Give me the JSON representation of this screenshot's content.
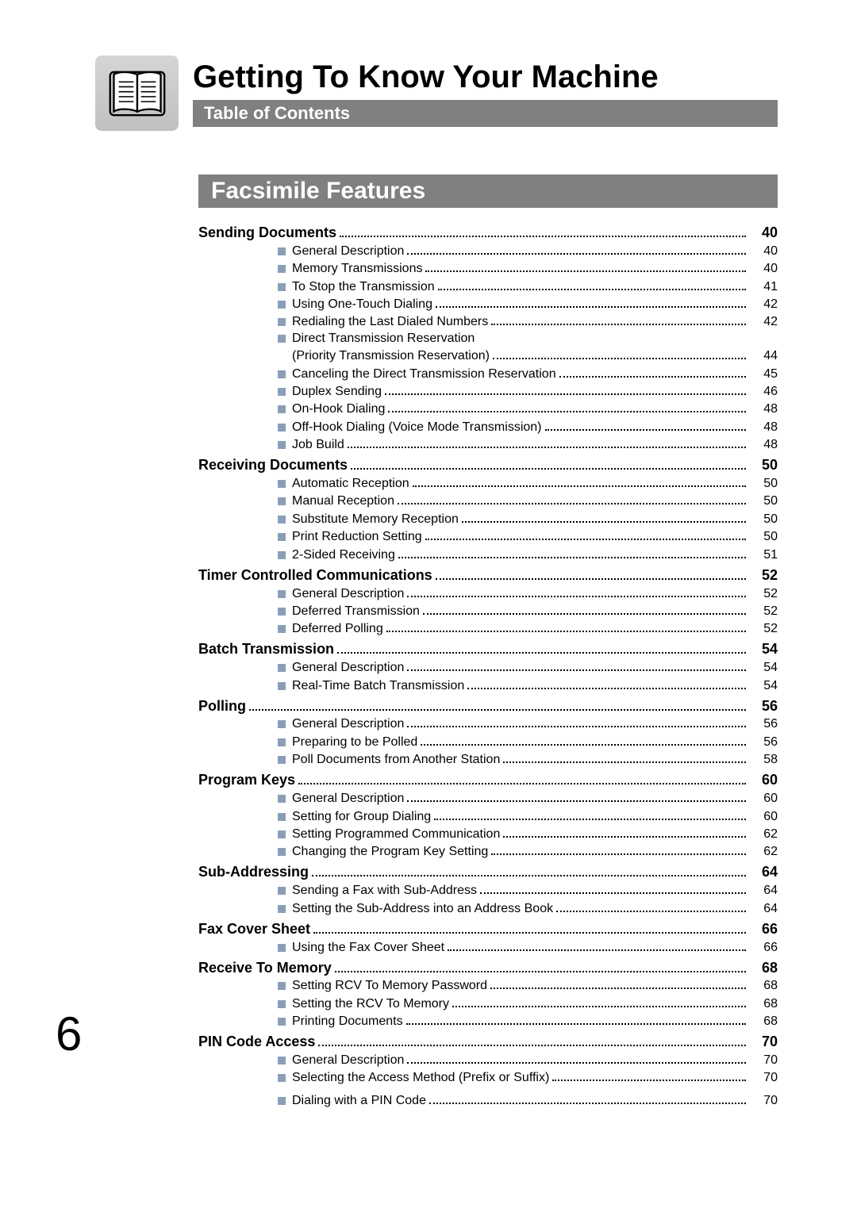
{
  "colors": {
    "barBg": "#808080",
    "barText": "#ffffff",
    "bullet": "#8a9fb7",
    "iconBg": "#cfcfcf",
    "text": "#000000"
  },
  "typography": {
    "titleSize": 40,
    "sectionSize": 30,
    "majorSize": 18,
    "subSize": 16,
    "folioSize": 60,
    "family": "Arial"
  },
  "page": {
    "title": "Getting To Know Your Machine",
    "tocBarLabel": "Table of Contents",
    "sectionBarLabel": "Facsimile Features",
    "folio": "6"
  },
  "toc": [
    {
      "type": "major",
      "label": "Sending Documents",
      "page": "40"
    },
    {
      "type": "sub",
      "label": "General Description",
      "page": "40"
    },
    {
      "type": "sub",
      "label": "Memory Transmissions",
      "page": "40"
    },
    {
      "type": "sub",
      "label": "To Stop the Transmission",
      "page": "41"
    },
    {
      "type": "sub",
      "label": "Using One-Touch Dialing",
      "page": "42"
    },
    {
      "type": "sub",
      "label": "Redialing the Last Dialed Numbers",
      "page": "42"
    },
    {
      "type": "sub-noleader",
      "label": "Direct Transmission Reservation",
      "page": ""
    },
    {
      "type": "sub-cont",
      "label": "(Priority Transmission Reservation)",
      "page": "44"
    },
    {
      "type": "sub",
      "label": "Canceling the Direct Transmission Reservation",
      "page": "45"
    },
    {
      "type": "sub",
      "label": "Duplex Sending",
      "page": "46"
    },
    {
      "type": "sub",
      "label": "On-Hook Dialing",
      "page": "48"
    },
    {
      "type": "sub",
      "label": "Off-Hook Dialing (Voice Mode Transmission)",
      "page": "48"
    },
    {
      "type": "sub",
      "label": "Job Build",
      "page": "48"
    },
    {
      "type": "major",
      "label": "Receiving Documents",
      "page": "50"
    },
    {
      "type": "sub",
      "label": "Automatic Reception",
      "page": "50"
    },
    {
      "type": "sub",
      "label": "Manual Reception",
      "page": "50"
    },
    {
      "type": "sub",
      "label": "Substitute Memory Reception",
      "page": "50"
    },
    {
      "type": "sub",
      "label": "Print Reduction Setting",
      "page": "50"
    },
    {
      "type": "sub",
      "label": "2-Sided Receiving",
      "page": "51"
    },
    {
      "type": "major",
      "label": "Timer Controlled Communications",
      "page": "52"
    },
    {
      "type": "sub",
      "label": "General Description",
      "page": "52"
    },
    {
      "type": "sub",
      "label": "Deferred Transmission",
      "page": "52"
    },
    {
      "type": "sub",
      "label": "Deferred Polling",
      "page": "52"
    },
    {
      "type": "major",
      "label": "Batch Transmission",
      "page": "54"
    },
    {
      "type": "sub",
      "label": "General Description",
      "page": "54"
    },
    {
      "type": "sub",
      "label": "Real-Time Batch Transmission",
      "page": "54"
    },
    {
      "type": "major",
      "label": "Polling",
      "page": "56"
    },
    {
      "type": "sub",
      "label": "General Description",
      "page": "56"
    },
    {
      "type": "sub",
      "label": "Preparing to be Polled",
      "page": "56"
    },
    {
      "type": "sub",
      "label": "Poll Documents from Another Station",
      "page": "58"
    },
    {
      "type": "major",
      "label": "Program Keys",
      "page": "60"
    },
    {
      "type": "sub",
      "label": "General Description",
      "page": "60"
    },
    {
      "type": "sub",
      "label": "Setting for Group Dialing",
      "page": "60"
    },
    {
      "type": "sub",
      "label": "Setting Programmed Communication",
      "page": "62"
    },
    {
      "type": "sub",
      "label": "Changing the Program Key Setting",
      "page": "62"
    },
    {
      "type": "major",
      "label": "Sub-Addressing",
      "page": "64"
    },
    {
      "type": "sub",
      "label": "Sending a Fax with Sub-Address",
      "page": "64"
    },
    {
      "type": "sub",
      "label": "Setting the Sub-Address into an Address Book",
      "page": "64"
    },
    {
      "type": "major",
      "label": "Fax Cover Sheet",
      "page": "66"
    },
    {
      "type": "sub",
      "label": "Using the Fax Cover Sheet",
      "page": "66"
    },
    {
      "type": "major",
      "label": "Receive To Memory",
      "page": "68"
    },
    {
      "type": "sub",
      "label": "Setting RCV To Memory Password",
      "page": "68"
    },
    {
      "type": "sub",
      "label": "Setting the RCV To Memory",
      "page": "68"
    },
    {
      "type": "sub",
      "label": "Printing Documents",
      "page": "68"
    },
    {
      "type": "major",
      "label": "PIN Code Access",
      "page": "70"
    },
    {
      "type": "sub",
      "label": "General Description",
      "page": "70"
    },
    {
      "type": "sub",
      "label": "Selecting the Access Method (Prefix or Suffix)",
      "page": "70"
    },
    {
      "type": "sub-spaced",
      "label": "Dialing with a PIN Code",
      "page": "70"
    }
  ]
}
